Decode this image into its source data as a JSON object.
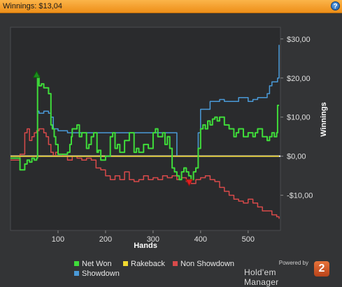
{
  "header": {
    "title": "Winnings: $13,04",
    "help_icon": "help-icon"
  },
  "chart_data": {
    "type": "line",
    "title": "",
    "xlabel": "Hands",
    "ylabel": "Winnings",
    "xlim": [
      0,
      568
    ],
    "ylim": [
      -19,
      33
    ],
    "xticks": [
      100,
      200,
      300,
      400,
      500
    ],
    "xtick_labels": [
      "100",
      "200",
      "300",
      "400",
      "500"
    ],
    "yticks": [
      30,
      20,
      10,
      0,
      -10
    ],
    "ytick_labels": [
      "$30,00",
      "$20,00",
      "$10,00",
      "$0,00",
      "-$10,00"
    ],
    "grid": false,
    "legend_position": "bottom",
    "series": [
      {
        "name": "Net Won",
        "color": "#3fdc3a",
        "type": "step",
        "x": [
          0,
          15,
          20,
          30,
          35,
          40,
          45,
          50,
          55,
          57,
          60,
          65,
          70,
          80,
          85,
          88,
          92,
          95,
          100,
          120,
          125,
          128,
          130,
          140,
          145,
          150,
          160,
          165,
          170,
          175,
          180,
          182,
          185,
          190,
          200,
          210,
          215,
          220,
          225,
          230,
          240,
          250,
          260,
          265,
          270,
          280,
          290,
          300,
          305,
          310,
          320,
          325,
          330,
          335,
          340,
          345,
          350,
          355,
          360,
          365,
          370,
          375,
          380,
          385,
          390,
          395,
          400,
          405,
          410,
          415,
          420,
          425,
          430,
          435,
          440,
          450,
          460,
          470,
          475,
          480,
          490,
          500,
          510,
          515,
          520,
          530,
          540,
          545,
          550,
          555,
          560,
          562,
          565
        ],
        "y": [
          -0.5,
          -0.5,
          -3.5,
          -2,
          -1,
          -1.5,
          -0.5,
          -1,
          -0.5,
          20.5,
          18,
          18.5,
          17.5,
          16,
          8,
          7,
          5,
          3,
          0.5,
          1,
          3,
          5,
          7,
          8,
          5,
          6,
          2,
          3,
          5,
          6,
          6,
          1,
          1.5,
          -1,
          0,
          5,
          6,
          2,
          3,
          1,
          4,
          6,
          1,
          2,
          1,
          3,
          2,
          6,
          7,
          5,
          6,
          3,
          5,
          2,
          -3,
          -4,
          -5,
          -6,
          -4,
          -3,
          -4,
          -5,
          -6,
          -4,
          -3,
          2,
          7,
          8,
          7,
          9,
          8,
          9.5,
          10,
          9,
          10,
          8,
          7,
          5,
          6,
          7,
          5,
          6,
          5,
          6,
          7,
          5,
          4,
          5,
          6,
          5,
          6,
          13,
          13
        ]
      },
      {
        "name": "Rakeback",
        "color": "#f0d830",
        "type": "step",
        "x": [
          0,
          565
        ],
        "y": [
          0,
          0
        ]
      },
      {
        "name": "Non Showdown",
        "color": "#d84a4a",
        "type": "step",
        "x": [
          0,
          20,
          30,
          35,
          40,
          45,
          50,
          55,
          60,
          65,
          70,
          75,
          80,
          85,
          90,
          95,
          100,
          110,
          120,
          130,
          140,
          150,
          160,
          170,
          180,
          190,
          200,
          210,
          220,
          230,
          240,
          250,
          260,
          270,
          280,
          290,
          300,
          310,
          320,
          330,
          340,
          350,
          360,
          370,
          375,
          380,
          390,
          400,
          410,
          420,
          430,
          440,
          450,
          460,
          470,
          480,
          490,
          500,
          510,
          520,
          530,
          540,
          550,
          560,
          565
        ],
        "y": [
          -1,
          0.5,
          6,
          7,
          4,
          5,
          6,
          6.5,
          7,
          7,
          6,
          5,
          3,
          1,
          0,
          1,
          0.5,
          0,
          -1,
          0,
          -0.5,
          -1,
          -0.5,
          -1,
          -3,
          -3.5,
          -5,
          -6,
          -5,
          -6,
          -4,
          -6,
          -6.5,
          -6,
          -5,
          -6,
          -5.5,
          -6,
          -5,
          -5.5,
          -5,
          -6,
          -5.5,
          -6.5,
          -6,
          -7,
          -6,
          -5.5,
          -5,
          -6,
          -6.5,
          -8,
          -9,
          -10,
          -11,
          -11.5,
          -12,
          -11,
          -12,
          -13,
          -14,
          -14,
          -15,
          -15.5,
          -16
        ]
      },
      {
        "name": "Showdown",
        "color": "#4a9ad8",
        "type": "step",
        "x": [
          0,
          55,
          57,
          60,
          70,
          80,
          85,
          90,
          100,
          120,
          130,
          140,
          150,
          200,
          250,
          300,
          320,
          330,
          340,
          350,
          360,
          370,
          380,
          390,
          395,
          400,
          420,
          440,
          450,
          460,
          480,
          500,
          510,
          520,
          530,
          540,
          545,
          550,
          555,
          558,
          562,
          565
        ],
        "y": [
          0,
          0,
          11.5,
          11,
          11.5,
          11,
          10,
          7,
          6.5,
          6,
          6,
          6,
          6,
          6,
          6,
          6,
          6,
          6,
          6,
          0,
          0,
          0,
          0,
          0,
          6,
          12,
          14,
          14.5,
          14,
          14,
          15,
          14,
          14.5,
          15,
          15,
          16,
          18,
          19,
          19,
          19,
          20,
          28.5
        ]
      }
    ]
  },
  "legend": {
    "items": [
      {
        "label": "Net Won",
        "color": "#3fdc3a"
      },
      {
        "label": "Rakeback",
        "color": "#f0d830"
      },
      {
        "label": "Non Showdown",
        "color": "#d84a4a"
      },
      {
        "label": "Showdown",
        "color": "#4a9ad8"
      }
    ]
  },
  "markers": {
    "peak": {
      "x": 55,
      "y": 20.5,
      "color": "#1c8c1c"
    },
    "trough": {
      "x": 376,
      "y": -6.5,
      "color": "#e02020"
    }
  },
  "branding": {
    "powered_by": "Powered by",
    "name": "Hold'em Manager",
    "logo_text": "2"
  }
}
